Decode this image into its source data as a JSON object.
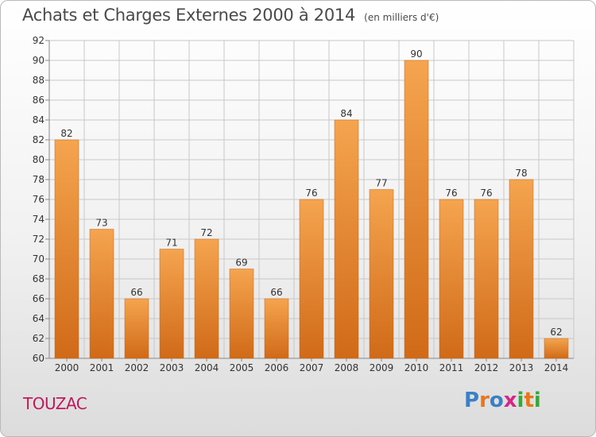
{
  "title": "Achats et Charges Externes 2000 à 2014",
  "subtitle": "(en milliers d'€)",
  "city": "TOUZAC",
  "logo": {
    "letters": [
      "P",
      "r",
      "o",
      "x",
      "i",
      "t",
      "i"
    ],
    "colors": [
      "#3b7fc4",
      "#e8761c",
      "#3b7fc4",
      "#d6258a",
      "#3aa640",
      "#e8761c",
      "#3aa640"
    ]
  },
  "colors": {
    "bar": "#f09a45",
    "bar_dark": "#d8741f",
    "grid": "#c8c8c8",
    "city": "#c2185b"
  },
  "chart_data": {
    "type": "bar",
    "categories": [
      "2000",
      "2001",
      "2002",
      "2003",
      "2004",
      "2005",
      "2006",
      "2007",
      "2008",
      "2009",
      "2010",
      "2011",
      "2012",
      "2013",
      "2014"
    ],
    "values": [
      82,
      73,
      66,
      71,
      72,
      69,
      66,
      76,
      84,
      77,
      90,
      76,
      76,
      78,
      62
    ],
    "ylim": [
      60,
      92
    ],
    "yticks": [
      60,
      62,
      64,
      66,
      68,
      70,
      72,
      74,
      76,
      78,
      80,
      82,
      84,
      86,
      88,
      90,
      92
    ],
    "grid": true
  }
}
